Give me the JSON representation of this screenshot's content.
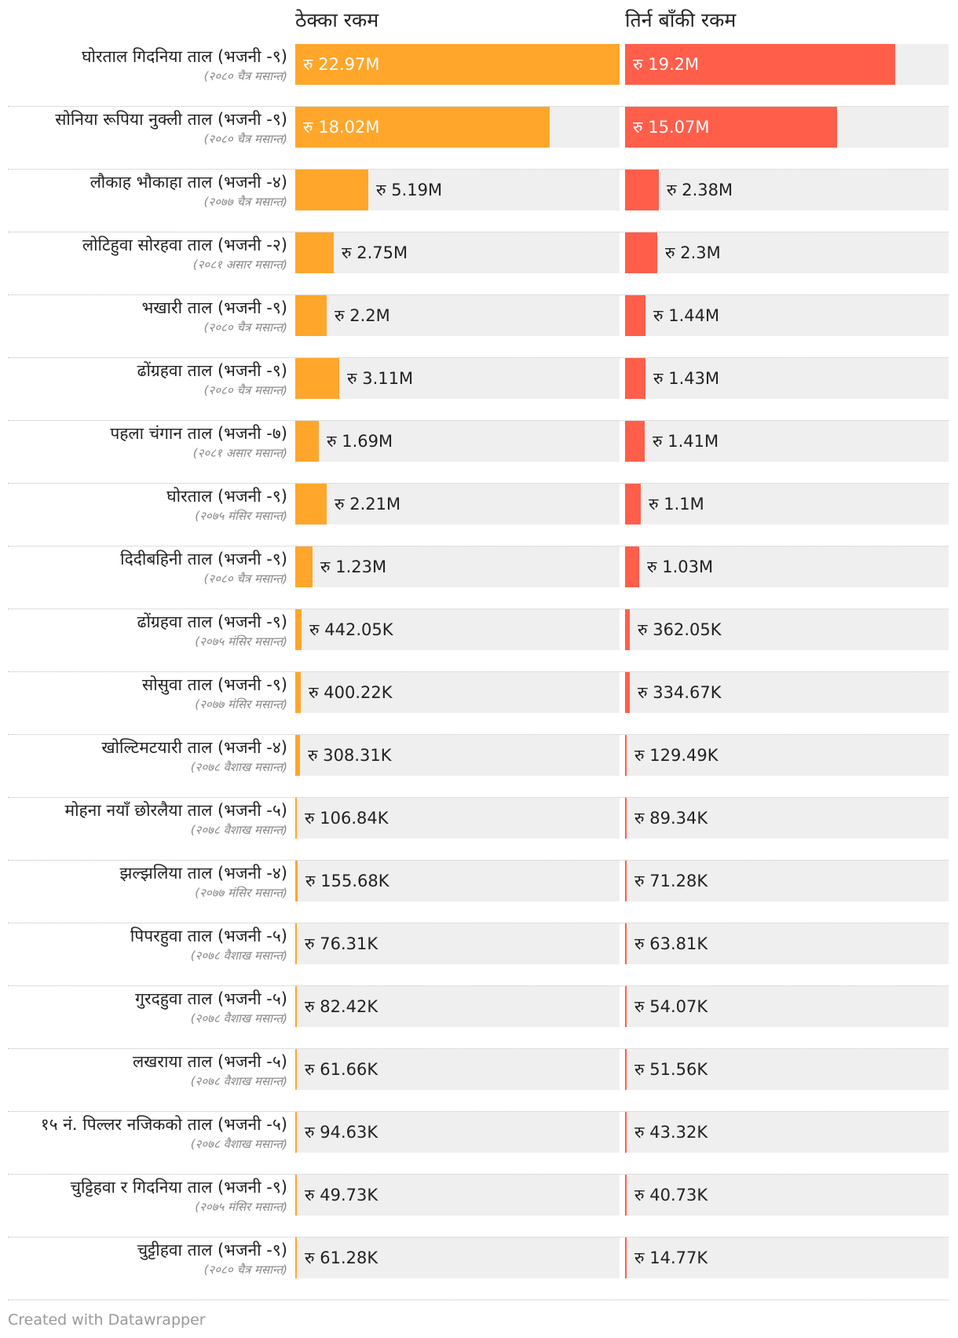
{
  "chart_data": {
    "type": "bar",
    "series": [
      {
        "name": "ठेक्का रकम",
        "color": "#ffa62b",
        "max": 22.97,
        "labels": [
          "रु 22.97M",
          "रु 18.02M",
          "रु 5.19M",
          "रु 2.75M",
          "रु 2.2M",
          "रु 3.11M",
          "रु 1.69M",
          "रु 2.21M",
          "रु 1.23M",
          "रु 442.05K",
          "रु 400.22K",
          "रु 308.31K",
          "रु 106.84K",
          "रु 155.68K",
          "रु 76.31K",
          "रु 82.42K",
          "रु 61.66K",
          "रु 94.63K",
          "रु 49.73K",
          "रु 61.28K"
        ],
        "values": [
          22.97,
          18.02,
          5.19,
          2.75,
          2.2,
          3.11,
          1.69,
          2.21,
          1.23,
          0.44205,
          0.40022,
          0.30831,
          0.10684,
          0.15568,
          0.07631,
          0.08242,
          0.06166,
          0.09463,
          0.04973,
          0.06128
        ]
      },
      {
        "name": "तिर्न बाँकी रकम",
        "color": "#ff5e4b",
        "max": 22.97,
        "labels": [
          "रु 19.2M",
          "रु 15.07M",
          "रु 2.38M",
          "रु 2.3M",
          "रु 1.44M",
          "रु 1.43M",
          "रु 1.41M",
          "रु 1.1M",
          "रु 1.03M",
          "रु 362.05K",
          "रु 334.67K",
          "रु 129.49K",
          "रु 89.34K",
          "रु 71.28K",
          "रु 63.81K",
          "रु 54.07K",
          "रु 51.56K",
          "रु 43.32K",
          "रु 40.73K",
          "रु 14.77K"
        ],
        "values": [
          19.2,
          15.07,
          2.38,
          2.3,
          1.44,
          1.43,
          1.41,
          1.1,
          1.03,
          0.36205,
          0.33467,
          0.12949,
          0.08934,
          0.07128,
          0.06381,
          0.05407,
          0.05156,
          0.04332,
          0.04073,
          0.01477
        ]
      }
    ],
    "categories": [
      {
        "name": "घोरताल गिदनिया ताल (भजनी -९)",
        "sub": "(२०८० चैत्र मसान्त)"
      },
      {
        "name": "सोनिया रूपिया नुक्ली ताल (भजनी -९)",
        "sub": "(२०८० चैत्र मसान्त)"
      },
      {
        "name": "लौकाह भौकाहा ताल (भजनी -४)",
        "sub": "(२०७७ चैत्र मसान्त)"
      },
      {
        "name": "लोटिहुवा सोरहवा ताल (भजनी -२)",
        "sub": "(२०८१ असार मसान्त)"
      },
      {
        "name": "भखारी ताल (भजनी -९)",
        "sub": "(२०८० चैत्र मसान्त)"
      },
      {
        "name": "ढोंग्रहवा ताल (भजनी -९)",
        "sub": "(२०८० चैत्र मसान्त)"
      },
      {
        "name": "पहला चंगान ताल (भजनी -७)",
        "sub": "(२०८१ असार मसान्त)"
      },
      {
        "name": "घोरताल (भजनी -९)",
        "sub": "(२०७५ मंसिर मसान्त)"
      },
      {
        "name": "दिदीबहिनी ताल (भजनी -९)",
        "sub": "(२०८० चैत्र मसान्त)"
      },
      {
        "name": "ढोंग्रहवा ताल (भजनी -९)",
        "sub": "(२०७५ मंसिर मसान्त)"
      },
      {
        "name": "सोसुवा ताल (भजनी -९)",
        "sub": "(२०७७ मंसिर मसान्त)"
      },
      {
        "name": "खोल्टिमटयारी ताल (भजनी -४)",
        "sub": "(२०७८ वैशाख मसान्त)"
      },
      {
        "name": "मोहना नयाँ छोरलैया ताल (भजनी -५)",
        "sub": "(२०७८ वैशाख मसान्त)"
      },
      {
        "name": "झल्झलिया ताल (भजनी -४)",
        "sub": "(२०७७ मंसिर मसान्त)"
      },
      {
        "name": "पिपरहुवा ताल (भजनी -५)",
        "sub": "(२०७८ वैशाख मसान्त)"
      },
      {
        "name": "गुरदहुवा ताल (भजनी -५)",
        "sub": "(२०७८ वैशाख मसान्त)"
      },
      {
        "name": "लखराया ताल (भजनी -५)",
        "sub": "(२०७८ वैशाख मसान्त)"
      },
      {
        "name": "१५ नं. पिल्लर नजिकको ताल (भजनी -५)",
        "sub": "(२०७८ वैशाख मसान्त)"
      },
      {
        "name": "चुट्टिहवा र गिदनिया ताल (भजनी -९)",
        "sub": "(२०७५ मंसिर मसान्त)"
      },
      {
        "name": "चुट्टीहवा ताल (भजनी -९)",
        "sub": "(२०८० चैत्र मसान्त)"
      }
    ]
  },
  "credit": "Created with Datawrapper"
}
